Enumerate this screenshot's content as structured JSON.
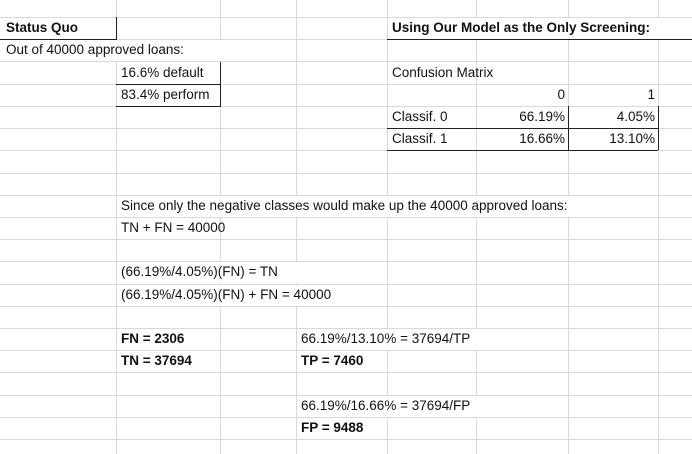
{
  "status_quo": {
    "title": "Status Quo",
    "subtitle": "Out of 40000 approved loans:",
    "default_line": "16.6% default",
    "perform_line": "83.4% perform"
  },
  "model": {
    "title": "Using Our Model as the Only Screening:",
    "cm_label": "Confusion Matrix",
    "col_headers": [
      "0",
      "1"
    ],
    "rows": [
      {
        "label": "Classif. 0",
        "values": [
          "66.19%",
          "4.05%"
        ]
      },
      {
        "label": "Classif. 1",
        "values": [
          "16.66%",
          "13.10%"
        ]
      }
    ]
  },
  "derivation": {
    "intro": "Since only the negative classes would make up the 40000 approved loans:",
    "eq1": "TN + FN = 40000",
    "eq2": "(66.19%/4.05%)(FN) = TN",
    "eq3": "(66.19%/4.05%)(FN) + FN = 40000",
    "fn_result": "FN = 2306",
    "tn_result": "TN = 37694",
    "tp_eq": "66.19%/13.10% = 37694/TP",
    "tp_result": "TP = 7460",
    "fp_eq": "66.19%/16.66% = 37694/FP",
    "fp_result": "FP = 9488"
  }
}
